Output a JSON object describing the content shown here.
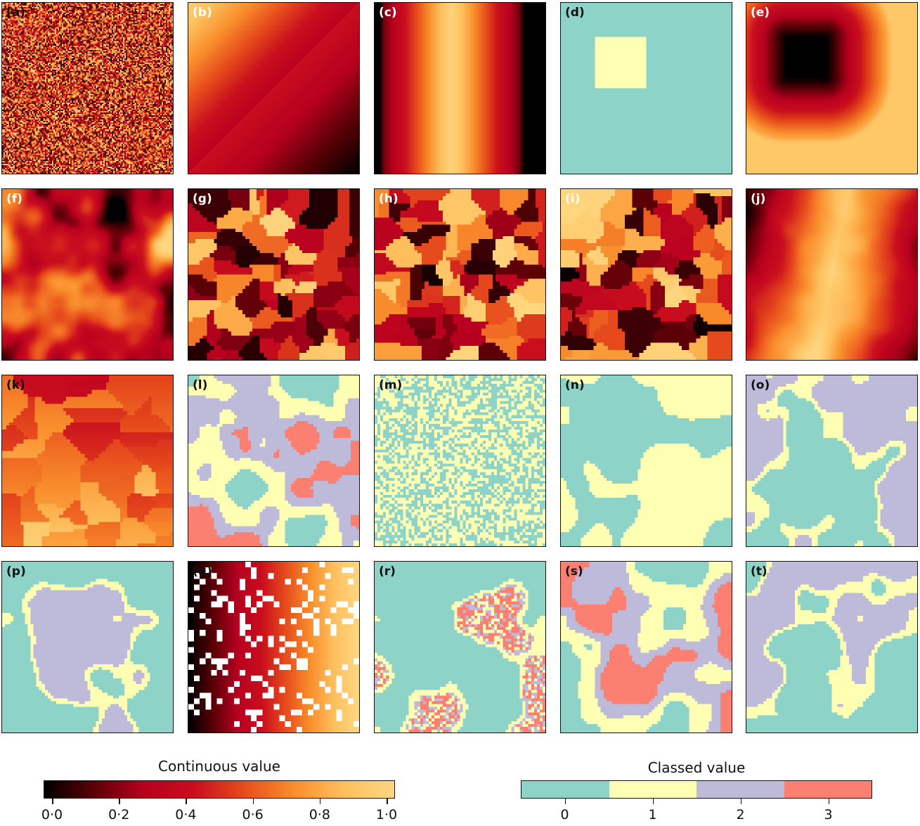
{
  "panels": [
    {
      "label": "(a)",
      "kind": "noise"
    },
    {
      "label": "(b)",
      "kind": "diag-gradient"
    },
    {
      "label": "(c)",
      "kind": "vertical-band"
    },
    {
      "label": "(d)",
      "kind": "square-class"
    },
    {
      "label": "(e)",
      "kind": "dark-square"
    },
    {
      "label": "(f)",
      "kind": "smooth-continuous"
    },
    {
      "label": "(g)",
      "kind": "patchy-continuous"
    },
    {
      "label": "(h)",
      "kind": "patchy-continuous"
    },
    {
      "label": "(i)",
      "kind": "patchy-continuous"
    },
    {
      "label": "(j)",
      "kind": "smooth-band"
    },
    {
      "label": "(k)",
      "kind": "patchy-red"
    },
    {
      "label": "(l)",
      "kind": "class-patchy-4"
    },
    {
      "label": "(m)",
      "kind": "class-noise-2"
    },
    {
      "label": "(n)",
      "kind": "class-patchy-2"
    },
    {
      "label": "(o)",
      "kind": "class-smooth-3"
    },
    {
      "label": "(p)",
      "kind": "class-smooth-3"
    },
    {
      "label": "(q)",
      "kind": "gradient-holes"
    },
    {
      "label": "(r)",
      "kind": "class-smooth-mixed"
    },
    {
      "label": "(s)",
      "kind": "class-patchy-4"
    },
    {
      "label": "(t)",
      "kind": "class-smooth-3"
    }
  ],
  "continuous_legend": {
    "title": "Continuous value",
    "ticks": [
      "0·0",
      "0·2",
      "0·4",
      "0·6",
      "0·8",
      "1·0"
    ],
    "range": [
      0,
      1
    ],
    "colormap": [
      "#000000",
      "#5a0006",
      "#b8001f",
      "#c90e1e",
      "#e74c1c",
      "#f98e2c",
      "#fec05e",
      "#ffd680"
    ]
  },
  "classed_legend": {
    "title": "Classed value",
    "ticks": [
      "0",
      "1",
      "2",
      "3"
    ],
    "colors": [
      "#8dd3c7",
      "#ffffb3",
      "#bebada",
      "#fb8072"
    ]
  }
}
